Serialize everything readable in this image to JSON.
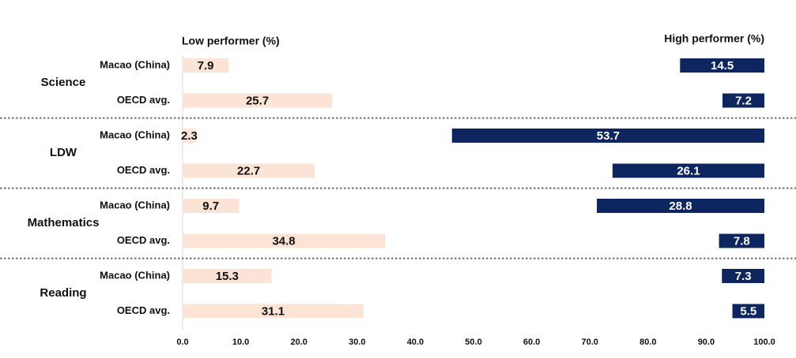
{
  "chart_data": {
    "type": "bar",
    "groups": [
      "Science",
      "LDW",
      "Mathematics",
      "Reading"
    ],
    "categories": [
      "Macao (China)",
      "OECD avg.",
      "Macao (China)",
      "OECD avg.",
      "Macao (China)",
      "OECD avg.",
      "Macao (China)",
      "OECD avg."
    ],
    "series": [
      {
        "name": "Low performer (%)",
        "color": "#fbe3d6",
        "values": [
          7.9,
          25.7,
          2.3,
          22.7,
          9.7,
          34.8,
          15.3,
          31.1
        ]
      },
      {
        "name": "High performer (%)",
        "color": "#0e2660",
        "values": [
          14.5,
          7.2,
          53.7,
          26.1,
          28.8,
          7.8,
          7.3,
          5.5
        ]
      }
    ],
    "xlim": [
      0,
      100
    ],
    "xticks": [
      {
        "value": 0,
        "label": "0.0"
      },
      {
        "value": 10,
        "label": "10.0"
      },
      {
        "value": 20,
        "label": "20.0"
      },
      {
        "value": 30,
        "label": "30.0"
      },
      {
        "value": 40,
        "label": "40.0"
      },
      {
        "value": 50,
        "label": "50.0"
      },
      {
        "value": 60,
        "label": "60.0"
      },
      {
        "value": 70,
        "label": "70.0"
      },
      {
        "value": 80,
        "label": "80.0"
      },
      {
        "value": 90,
        "label": "90.0"
      },
      {
        "value": 100,
        "label": "100.0"
      }
    ]
  }
}
